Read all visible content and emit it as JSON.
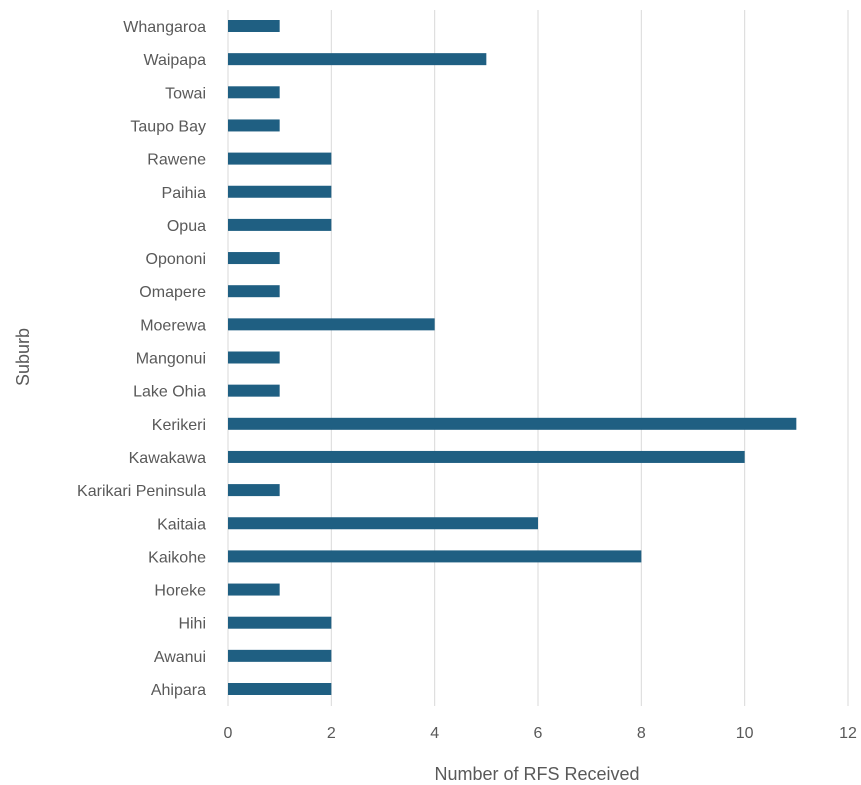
{
  "chart_data": {
    "type": "bar",
    "orientation": "horizontal",
    "xlabel": "Number of RFS Received",
    "ylabel": "Suburb",
    "xlim": [
      0,
      12
    ],
    "xticks": [
      0,
      2,
      4,
      6,
      8,
      10,
      12
    ],
    "grid": true,
    "legend": "none",
    "bar_color": "#1f5f82",
    "categories": [
      "Whangaroa",
      "Waipapa",
      "Towai",
      "Taupo Bay",
      "Rawene",
      "Paihia",
      "Opua",
      "Opononi",
      "Omapere",
      "Moerewa",
      "Mangonui",
      "Lake Ohia",
      "Kerikeri",
      "Kawakawa",
      "Karikari Peninsula",
      "Kaitaia",
      "Kaikohe",
      "Horeke",
      "Hihi",
      "Awanui",
      "Ahipara"
    ],
    "values": [
      1,
      5,
      1,
      1,
      2,
      2,
      2,
      1,
      1,
      4,
      1,
      1,
      11,
      10,
      1,
      6,
      8,
      1,
      2,
      2,
      2
    ]
  }
}
